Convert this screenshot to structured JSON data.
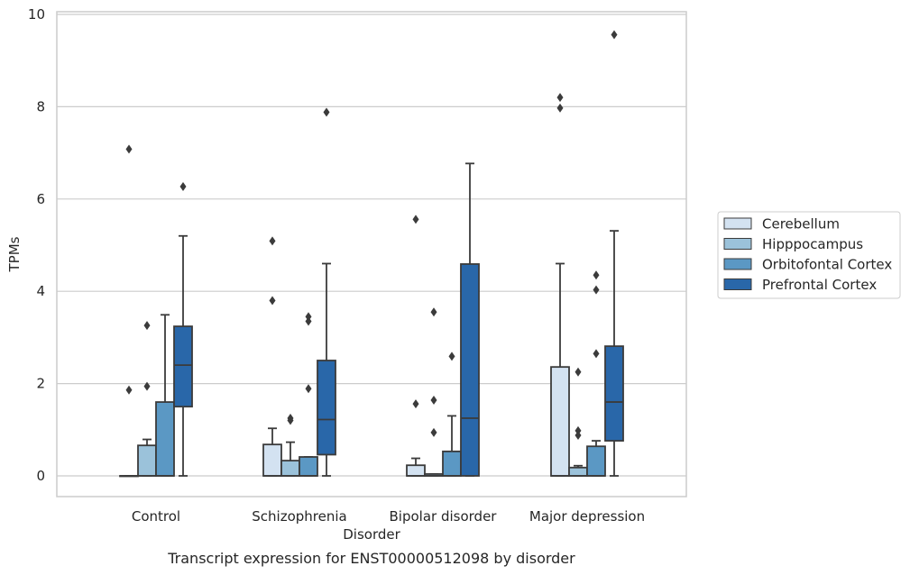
{
  "chart_data": {
    "type": "box",
    "caption": "Transcript expression for ENST00000512098 by disorder",
    "xlabel": "Disorder",
    "ylabel": "TPMs",
    "ylim": [
      -0.45,
      10.05
    ],
    "yticks": [
      0,
      2,
      4,
      6,
      8,
      10
    ],
    "grid": "horizontal",
    "legend_position": "right",
    "categories": [
      "Control",
      "Schizophrenia",
      "Bipolar disorder",
      "Major depression"
    ],
    "series": [
      {
        "name": "Cerebellum",
        "color": "#d3e2f1",
        "boxes": [
          {
            "q1": 0,
            "median": 0,
            "q3": 0,
            "whisker_low": 0,
            "whisker_high": 0,
            "outliers": [
              7.08,
              1.86
            ]
          },
          {
            "q1": 0,
            "median": 0,
            "q3": 0.68,
            "whisker_low": 0,
            "whisker_high": 1.03,
            "outliers": [
              5.09,
              3.8
            ]
          },
          {
            "q1": 0,
            "median": 0,
            "q3": 0.23,
            "whisker_low": 0,
            "whisker_high": 0.38,
            "outliers": [
              5.56,
              1.56
            ]
          },
          {
            "q1": 0,
            "median": 0,
            "q3": 2.36,
            "whisker_low": 0,
            "whisker_high": 4.6,
            "outliers": [
              8.2,
              7.97
            ]
          }
        ]
      },
      {
        "name": "Hipppocampus",
        "color": "#9bc2da",
        "boxes": [
          {
            "q1": 0,
            "median": 0,
            "q3": 0.66,
            "whisker_low": 0,
            "whisker_high": 0.79,
            "outliers": [
              3.26,
              1.94
            ]
          },
          {
            "q1": 0,
            "median": 0,
            "q3": 0.33,
            "whisker_low": 0,
            "whisker_high": 0.73,
            "outliers": [
              1.25,
              1.2
            ]
          },
          {
            "q1": 0,
            "median": 0,
            "q3": 0.04,
            "whisker_low": 0,
            "whisker_high": 0.04,
            "outliers": [
              3.55,
              1.64,
              0.94
            ]
          },
          {
            "q1": 0,
            "median": 0,
            "q3": 0.18,
            "whisker_low": 0,
            "whisker_high": 0.22,
            "outliers": [
              2.25,
              0.98,
              0.88
            ]
          }
        ]
      },
      {
        "name": "Orbitofontal Cortex",
        "color": "#5b98c4",
        "boxes": [
          {
            "q1": 0,
            "median": 0,
            "q3": 1.6,
            "whisker_low": 0,
            "whisker_high": 3.49,
            "outliers": []
          },
          {
            "q1": 0,
            "median": 0,
            "q3": 0.41,
            "whisker_low": 0,
            "whisker_high": 0.41,
            "outliers": [
              3.45,
              3.35,
              1.89
            ]
          },
          {
            "q1": 0,
            "median": 0,
            "q3": 0.53,
            "whisker_low": 0,
            "whisker_high": 1.3,
            "outliers": [
              2.59
            ]
          },
          {
            "q1": 0,
            "median": 0,
            "q3": 0.64,
            "whisker_low": 0,
            "whisker_high": 0.76,
            "outliers": [
              4.35,
              4.03,
              2.65
            ]
          }
        ]
      },
      {
        "name": "Prefrontal Cortex",
        "color": "#2967a9",
        "boxes": [
          {
            "q1": 1.5,
            "median": 2.4,
            "q3": 3.24,
            "whisker_low": 0,
            "whisker_high": 5.2,
            "outliers": [
              6.27
            ]
          },
          {
            "q1": 0.46,
            "median": 1.22,
            "q3": 2.5,
            "whisker_low": 0,
            "whisker_high": 4.6,
            "outliers": [
              7.88
            ]
          },
          {
            "q1": 0,
            "median": 1.25,
            "q3": 4.59,
            "whisker_low": 0,
            "whisker_high": 6.77,
            "outliers": []
          },
          {
            "q1": 0.76,
            "median": 1.6,
            "q3": 2.81,
            "whisker_low": 0,
            "whisker_high": 5.31,
            "outliers": [
              9.56
            ]
          }
        ]
      }
    ]
  }
}
